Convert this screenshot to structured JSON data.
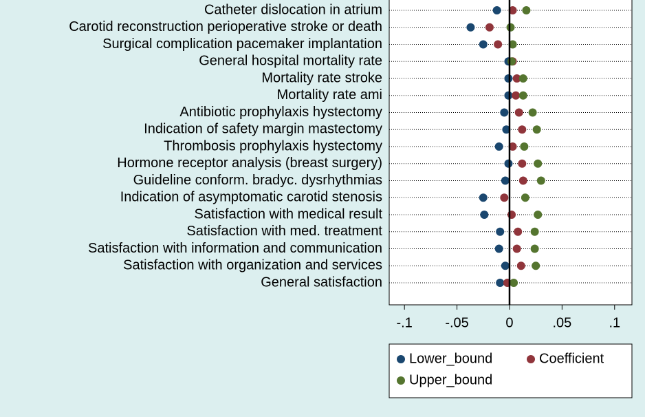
{
  "chart_data": {
    "type": "dot",
    "categories": [
      "Catheter dislocation in atrium",
      "Carotid reconstruction perioperative stroke or death",
      "Surgical complication pacemaker implantation",
      "General hospital mortality rate ",
      "Mortality rate stroke",
      "Mortality rate ami ",
      "Antibiotic prophylaxis hystectomy",
      "Indication of safety margin mastectomy",
      "Thrombosis prophylaxis hystectomy",
      "Hormone receptor analysis (breast surgery)",
      "Guideline conform. bradyc. dysrhythmias",
      "Indication of asymptomatic carotid stenosis",
      "Satisfaction with medical result ",
      "Satisfaction with med. treatment",
      "Satisfaction with information and communication",
      "Satisfaction with organization and services",
      "General satisfaction"
    ],
    "series": [
      {
        "name": "Lower_bound",
        "color": "#1a476f",
        "values": [
          -0.012,
          -0.037,
          -0.025,
          -0.001,
          -0.001,
          -0.001,
          -0.005,
          -0.003,
          -0.01,
          -0.001,
          -0.004,
          -0.025,
          -0.024,
          -0.009,
          -0.01,
          -0.004,
          -0.009
        ]
      },
      {
        "name": "Coefficient",
        "color": "#90353b",
        "values": [
          0.003,
          -0.019,
          -0.011,
          0.003,
          0.007,
          0.006,
          0.009,
          0.012,
          0.003,
          0.012,
          0.013,
          -0.005,
          0.002,
          0.008,
          0.007,
          0.011,
          -0.002
        ]
      },
      {
        "name": "Upper_bound",
        "color": "#55752f",
        "values": [
          0.016,
          0.001,
          0.003,
          0.002,
          0.013,
          0.013,
          0.022,
          0.026,
          0.014,
          0.027,
          0.03,
          0.015,
          0.027,
          0.024,
          0.024,
          0.025,
          0.004
        ]
      }
    ],
    "xlim": [
      -0.1145,
      0.1165
    ],
    "xticks": [
      {
        "value": -0.1,
        "label": "-.1"
      },
      {
        "value": -0.05,
        "label": "-.05"
      },
      0,
      {
        "value": 0.05,
        "label": ".05"
      },
      {
        "value": 0.1,
        "label": ".1"
      }
    ],
    "xline": 0,
    "grid": true
  }
}
